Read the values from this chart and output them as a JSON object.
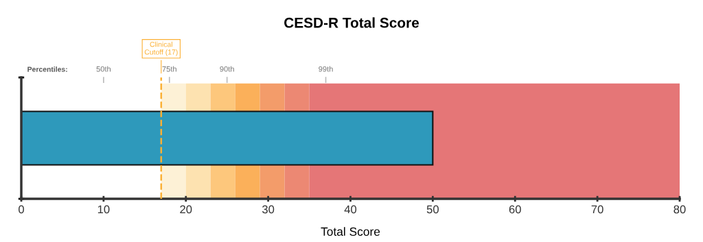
{
  "chart_data": {
    "type": "bar",
    "orientation": "horizontal",
    "title": "CESD-R Total Score",
    "xlabel": "Total Score",
    "categories": [
      null
    ],
    "series": [
      {
        "color": "#2e99bb",
        "values": [
          50
        ]
      }
    ],
    "xlim": [
      0,
      80
    ],
    "xticks": [
      0,
      10,
      20,
      30,
      40,
      50,
      60,
      70,
      80
    ],
    "tick_labels": "x",
    "ref_lines": [
      {
        "axis": "x",
        "value": 17,
        "label": "Clinical\nCutoff (17)",
        "color": "#fbb034",
        "line_style": "dashed"
      },
      {
        "axis": "x",
        "value": 10,
        "label": "50th",
        "color": "#bbbbbb",
        "line_style": "solid"
      },
      {
        "axis": "x",
        "value": 18,
        "label": "75th",
        "color": "#bbbbbb",
        "line_style": "solid"
      },
      {
        "axis": "x",
        "value": 25,
        "label": "90th",
        "color": "#bbbbbb",
        "line_style": "solid"
      },
      {
        "axis": "x",
        "value": 37,
        "label": "99th",
        "color": "#bbbbbb",
        "line_style": "solid"
      }
    ],
    "bands": [
      {
        "axis": "x",
        "from": 17,
        "to": 20,
        "color": "#fdf1d6"
      },
      {
        "axis": "x",
        "from": 20,
        "to": 23,
        "color": "#fde2b0"
      },
      {
        "axis": "x",
        "from": 23,
        "to": 26,
        "color": "#fdc77c"
      },
      {
        "axis": "x",
        "from": 26,
        "to": 29,
        "color": "#fbb05a"
      },
      {
        "axis": "x",
        "from": 29,
        "to": 32,
        "color": "#f39c6a"
      },
      {
        "axis": "x",
        "from": 32,
        "to": 35,
        "color": "#ec8873"
      },
      {
        "axis": "x",
        "from": 35,
        "to": 80,
        "color": "#e57677"
      }
    ],
    "annotations": [
      "Percentiles:"
    ],
    "grid": false
  }
}
